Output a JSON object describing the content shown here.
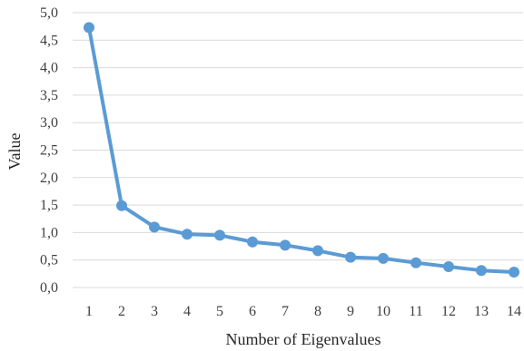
{
  "chart_data": {
    "type": "line",
    "title": "",
    "xlabel": "Number of Eigenvalues",
    "ylabel": "Value",
    "x": [
      1,
      2,
      3,
      4,
      5,
      6,
      7,
      8,
      9,
      10,
      11,
      12,
      13,
      14
    ],
    "x_tick_labels": [
      "1",
      "2",
      "3",
      "4",
      "5",
      "6",
      "7",
      "8",
      "9",
      "10",
      "11",
      "12",
      "13",
      "14"
    ],
    "y_tick_labels": [
      "0,0",
      "0,5",
      "1,0",
      "1,5",
      "2,0",
      "2,5",
      "3,0",
      "3,5",
      "4,0",
      "4,5",
      "5,0"
    ],
    "ylim": [
      0,
      5
    ],
    "y_ticks": [
      0,
      0.5,
      1.0,
      1.5,
      2.0,
      2.5,
      3.0,
      3.5,
      4.0,
      4.5,
      5.0
    ],
    "grid": true,
    "legend": "none",
    "series": [
      {
        "values": [
          4.73,
          1.49,
          1.1,
          0.97,
          0.95,
          0.83,
          0.77,
          0.67,
          0.55,
          0.53,
          0.45,
          0.38,
          0.31,
          0.28
        ],
        "color": "#5b9bd5"
      }
    ]
  }
}
